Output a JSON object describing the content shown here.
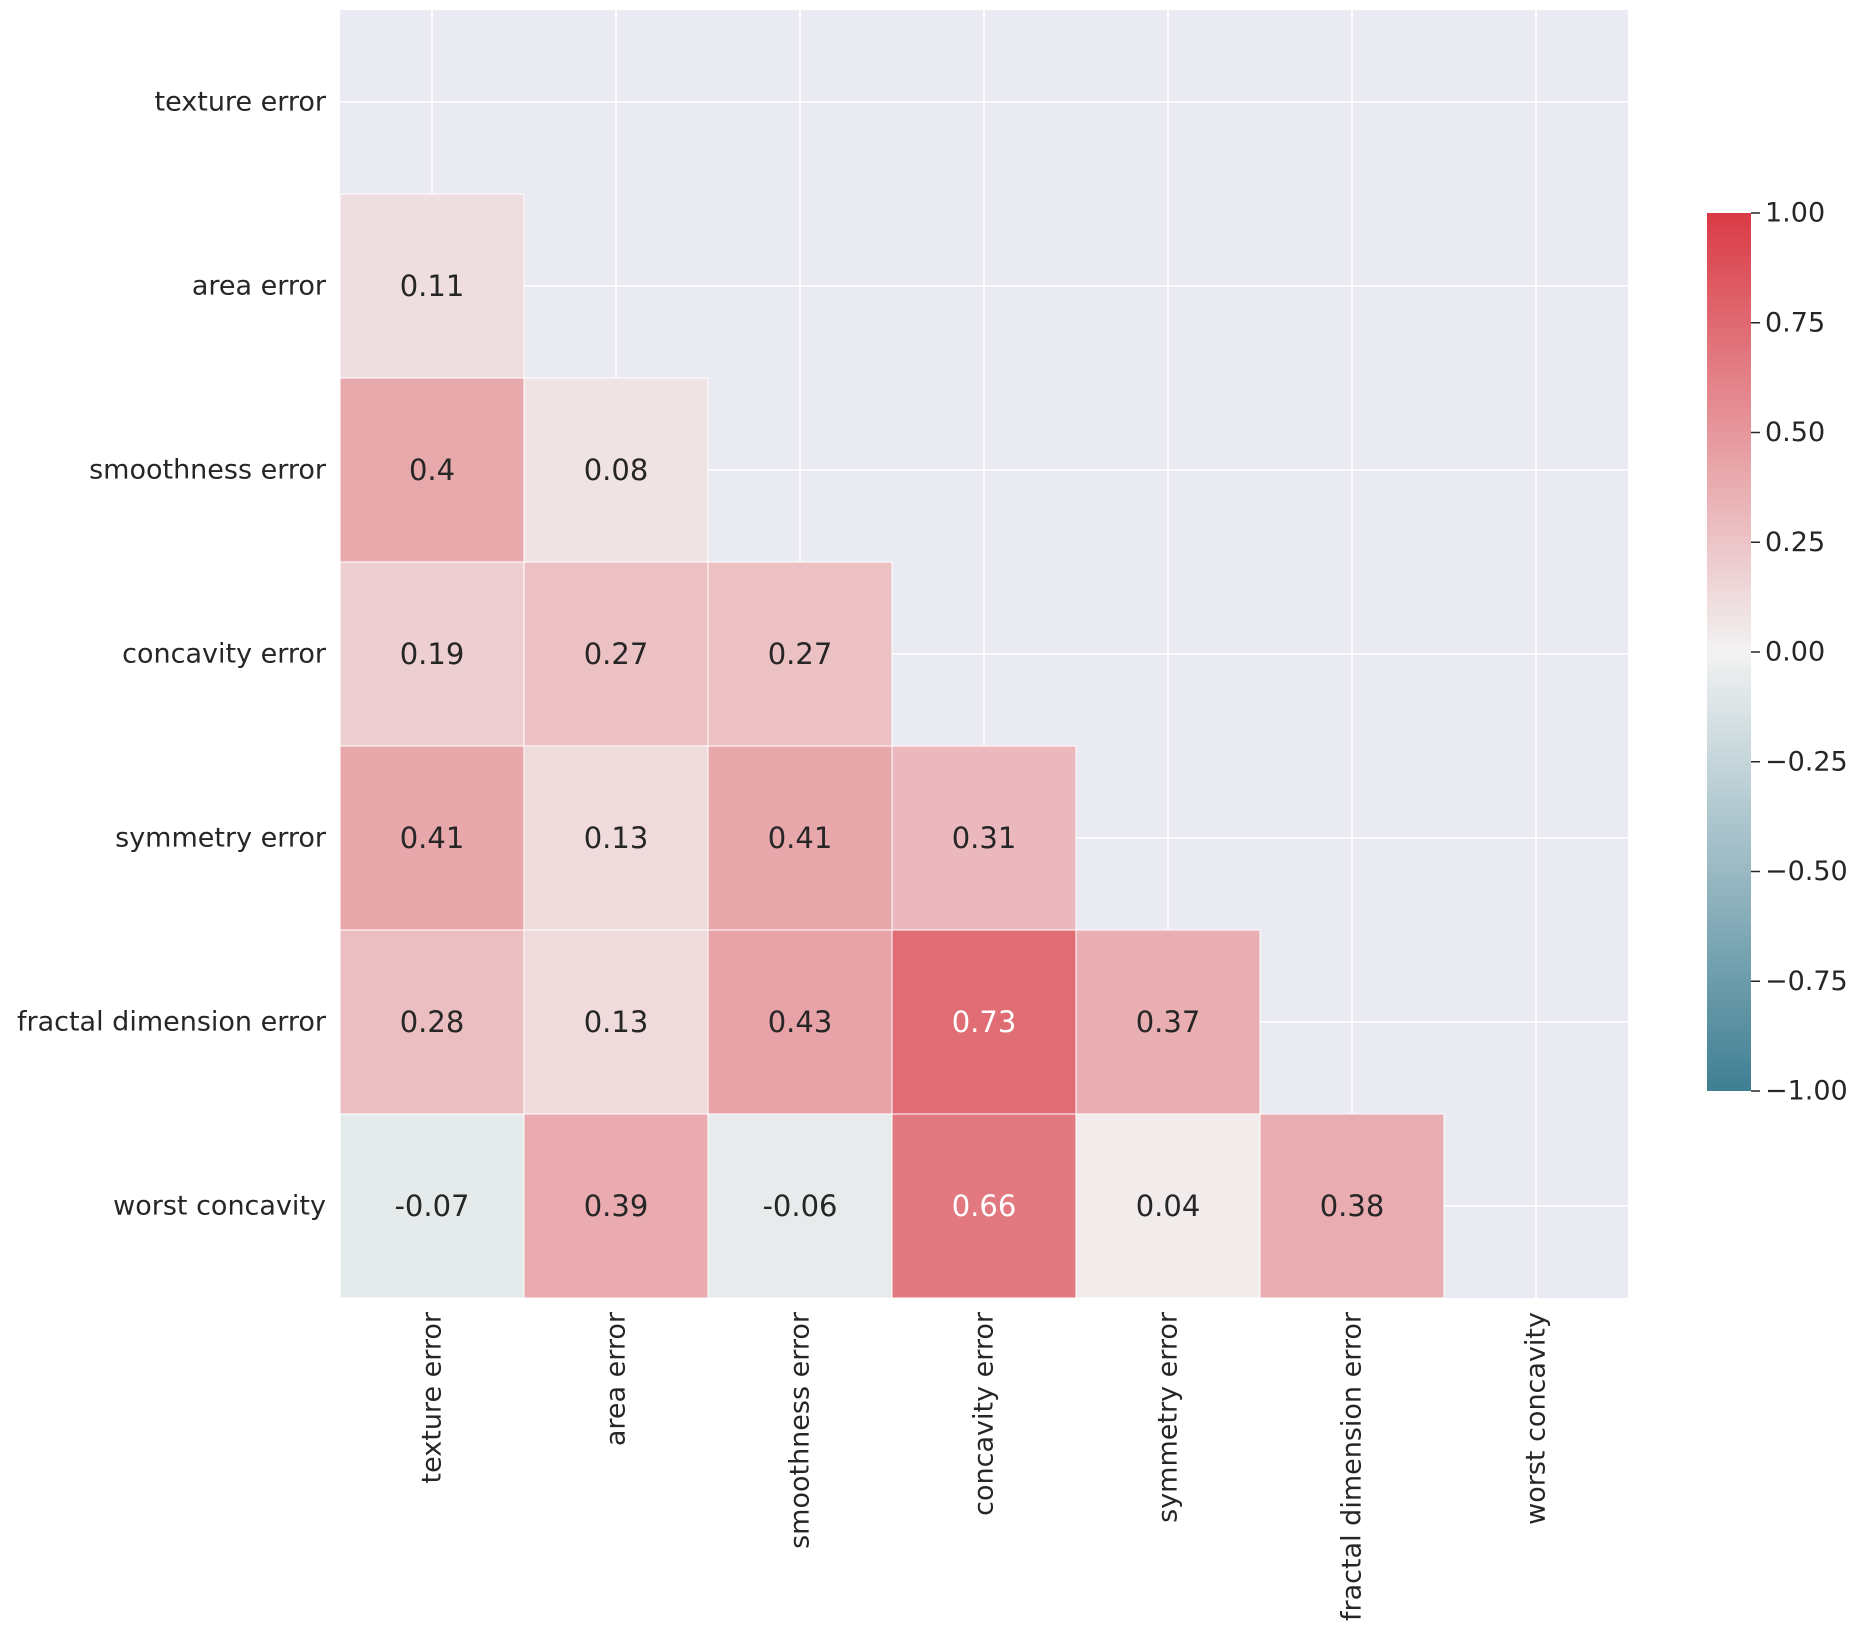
{
  "chart_data": {
    "type": "heatmap",
    "title": "",
    "xlabel": "",
    "ylabel": "",
    "row_labels": [
      "texture error",
      "area error",
      "smoothness error",
      "concavity error",
      "symmetry error",
      "fractal dimension error",
      "worst concavity"
    ],
    "col_labels": [
      "texture error",
      "area error",
      "smoothness error",
      "concavity error",
      "symmetry error",
      "fractal dimension error",
      "worst concavity"
    ],
    "mask": "upper-triangle-including-diagonal",
    "values": [
      [
        null,
        null,
        null,
        null,
        null,
        null,
        null
      ],
      [
        0.11,
        null,
        null,
        null,
        null,
        null,
        null
      ],
      [
        0.4,
        0.08,
        null,
        null,
        null,
        null,
        null
      ],
      [
        0.19,
        0.27,
        0.27,
        null,
        null,
        null,
        null
      ],
      [
        0.41,
        0.13,
        0.41,
        0.31,
        null,
        null,
        null
      ],
      [
        0.28,
        0.13,
        0.43,
        0.73,
        0.37,
        null,
        null
      ],
      [
        -0.07,
        0.39,
        -0.06,
        0.66,
        0.04,
        0.38,
        null
      ]
    ],
    "annotations": [
      [
        null,
        null,
        null,
        null,
        null,
        null,
        null
      ],
      [
        "0.11",
        null,
        null,
        null,
        null,
        null,
        null
      ],
      [
        "0.4",
        "0.08",
        null,
        null,
        null,
        null,
        null
      ],
      [
        "0.19",
        "0.27",
        "0.27",
        null,
        null,
        null,
        null
      ],
      [
        "0.41",
        "0.13",
        "0.41",
        "0.31",
        null,
        null,
        null
      ],
      [
        "0.28",
        "0.13",
        "0.43",
        "0.73",
        "0.37",
        null,
        null
      ],
      [
        "-0.07",
        "0.39",
        "-0.06",
        "0.66",
        "0.04",
        "0.38",
        null
      ]
    ],
    "colorbar": {
      "vmin": -1.0,
      "vmax": 1.0,
      "ticks": [
        1.0,
        0.75,
        0.5,
        0.25,
        0.0,
        -0.25,
        -0.5,
        -0.75,
        -1.0
      ],
      "tick_labels": [
        "1.00",
        "0.75",
        "0.50",
        "0.25",
        "0.00",
        "−0.25",
        "−0.50",
        "−0.75",
        "−1.00"
      ],
      "colors": {
        "min": "#3f7f93",
        "mid": "#f2f2f2",
        "max": "#da3b46"
      }
    },
    "background_color": "#eaeaf2",
    "grid": true
  }
}
